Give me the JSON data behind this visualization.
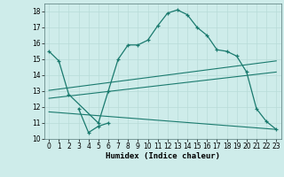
{
  "xlabel": "Humidex (Indice chaleur)",
  "background_color": "#ceecea",
  "line_color": "#1a7a6e",
  "xlim": [
    -0.5,
    23.5
  ],
  "ylim": [
    10,
    18.5
  ],
  "yticks": [
    10,
    11,
    12,
    13,
    14,
    15,
    16,
    17,
    18
  ],
  "xticks": [
    0,
    1,
    2,
    3,
    4,
    5,
    6,
    7,
    8,
    9,
    10,
    11,
    12,
    13,
    14,
    15,
    16,
    17,
    18,
    19,
    20,
    21,
    22,
    23
  ],
  "series1_x": [
    0,
    1,
    2,
    5,
    6,
    7,
    8,
    9,
    10,
    11,
    12,
    13,
    14,
    15,
    16,
    17,
    18,
    19,
    20,
    21,
    22,
    23
  ],
  "series1_y": [
    15.5,
    14.9,
    12.8,
    11.0,
    13.0,
    15.0,
    15.9,
    15.9,
    16.2,
    17.1,
    17.9,
    18.1,
    17.8,
    17.0,
    16.5,
    15.6,
    15.5,
    15.2,
    14.2,
    11.9,
    11.1,
    10.6
  ],
  "series2_x": [
    3,
    4,
    5,
    6
  ],
  "series2_y": [
    11.9,
    10.4,
    10.8,
    11.0
  ],
  "line1_x": [
    0,
    23
  ],
  "line1_y": [
    13.05,
    14.9
  ],
  "line2_x": [
    0,
    23
  ],
  "line2_y": [
    12.55,
    14.2
  ],
  "line3_x": [
    0,
    23
  ],
  "line3_y": [
    11.7,
    10.6
  ],
  "grid_color": "#b8dbd8",
  "xlabel_fontsize": 6.5,
  "tick_fontsize": 5.5
}
